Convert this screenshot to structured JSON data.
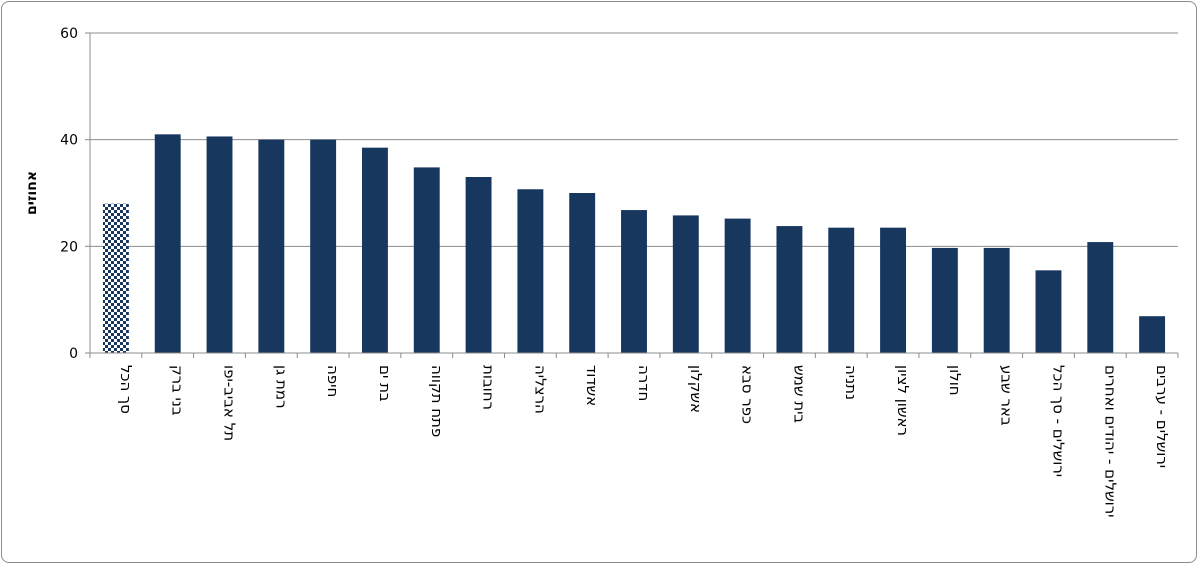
{
  "chart_data": {
    "type": "bar",
    "title": "",
    "xlabel": "",
    "ylabel": "אחוזים",
    "ylim": [
      0,
      60
    ],
    "yticks": [
      0,
      20,
      40,
      60
    ],
    "grid": true,
    "legend": "none",
    "categories": [
      "סך הכל",
      "בני ברק",
      "תל אביב-יפו",
      "רמת גן",
      "חיפה",
      "בת ים",
      "פתח תקווה",
      "רחובות",
      "הרצליה",
      "אשדוד",
      "חדרה",
      "אשקלון",
      "כפר סבא",
      "בית שמש",
      "נתניה",
      "ראשון לציון",
      "חולון",
      "באר שבע",
      "ירושלים - סך הכל",
      "ירושלים - יהודים ואחרים",
      "ירושלים - ערבים"
    ],
    "values": [
      28,
      41,
      40.6,
      40,
      40,
      38.5,
      34.8,
      33,
      30.7,
      30,
      26.8,
      25.8,
      25.2,
      23.8,
      23.5,
      23.5,
      19.7,
      19.7,
      15.5,
      20.8,
      6.9
    ],
    "highlight_index": 0,
    "colors": {
      "bar": "#17375e",
      "highlight_checker_dark": "#17375e",
      "highlight_checker_light": "#ffffff",
      "grid": "#8c8c8c",
      "axis": "#8c8c8c"
    }
  }
}
